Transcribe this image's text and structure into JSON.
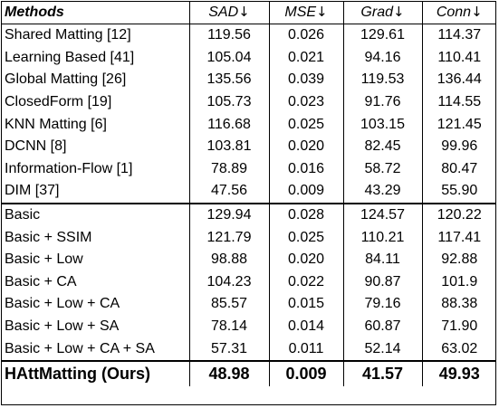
{
  "table": {
    "headers": {
      "method": "Methods",
      "sad": "SAD",
      "mse": "MSE",
      "grad": "Grad",
      "conn": "Conn",
      "arrow": "↓"
    },
    "rows": [
      {
        "method": "Shared Matting [12]",
        "sad": "119.56",
        "mse": "0.026",
        "grad": "129.61",
        "conn": "114.37"
      },
      {
        "method": "Learning Based [41]",
        "sad": "105.04",
        "mse": "0.021",
        "grad": "94.16",
        "conn": "110.41"
      },
      {
        "method": "Global Matting [26]",
        "sad": "135.56",
        "mse": "0.039",
        "grad": "119.53",
        "conn": "136.44"
      },
      {
        "method": "ClosedForm [19]",
        "sad": "105.73",
        "mse": "0.023",
        "grad": "91.76",
        "conn": "114.55"
      },
      {
        "method": "KNN Matting [6]",
        "sad": "116.68",
        "mse": "0.025",
        "grad": "103.15",
        "conn": "121.45"
      },
      {
        "method": "DCNN [8]",
        "sad": "103.81",
        "mse": "0.020",
        "grad": "82.45",
        "conn": "99.96"
      },
      {
        "method": "Information-Flow [1]",
        "sad": "78.89",
        "mse": "0.016",
        "grad": "58.72",
        "conn": "80.47"
      },
      {
        "method": "DIM [37]",
        "sad": "47.56",
        "mse": "0.009",
        "grad": "43.29",
        "conn": "55.90"
      },
      {
        "method": "Basic",
        "sad": "129.94",
        "mse": "0.028",
        "grad": "124.57",
        "conn": "120.22"
      },
      {
        "method": "Basic + SSIM",
        "sad": "121.79",
        "mse": "0.025",
        "grad": "110.21",
        "conn": "117.41"
      },
      {
        "method": "Basic + Low",
        "sad": "98.88",
        "mse": "0.020",
        "grad": "84.11",
        "conn": "92.88"
      },
      {
        "method": "Basic + CA",
        "sad": "104.23",
        "mse": "0.022",
        "grad": "90.87",
        "conn": "101.9"
      },
      {
        "method": "Basic + Low + CA",
        "sad": "85.57",
        "mse": "0.015",
        "grad": "79.16",
        "conn": "88.38"
      },
      {
        "method": "Basic + Low + SA",
        "sad": "78.14",
        "mse": "0.014",
        "grad": "60.87",
        "conn": "71.90"
      },
      {
        "method": "Basic + Low + CA + SA",
        "sad": "57.31",
        "mse": "0.011",
        "grad": "52.14",
        "conn": "63.02"
      },
      {
        "method": "HAttMatting (Ours)",
        "sad": "48.98",
        "mse": "0.009",
        "grad": "41.57",
        "conn": "49.93"
      }
    ]
  }
}
